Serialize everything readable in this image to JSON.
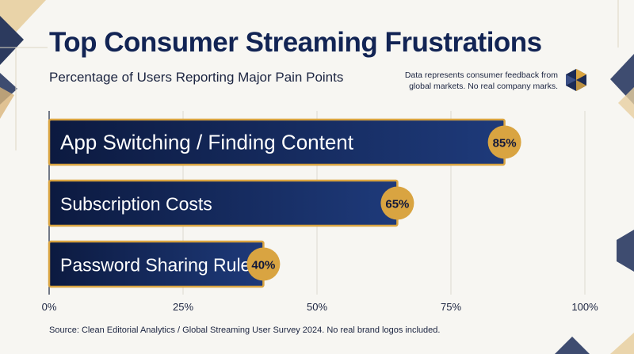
{
  "header": {
    "title": "Top Consumer Streaming Frustrations",
    "subtitle": "Percentage of Users Reporting Major Pain Points",
    "note_line1": "Data represents consumer feedback from",
    "note_line2": "global markets. No real company marks."
  },
  "footer": {
    "source": "Source: Clean Editorial Analytics / Global Streaming User Survey 2024. No real brand logos included."
  },
  "colors": {
    "bar_start": "#0c1a40",
    "bar_end": "#1e3a7a",
    "accent_gold": "#d9a441",
    "text_dark": "#122454",
    "background": "#f7f6f2"
  },
  "icons": [
    "hexagon-logo-icon"
  ],
  "chart_data": {
    "type": "bar",
    "orientation": "horizontal",
    "categories": [
      "App Switching / Finding Content",
      "Subscription Costs",
      "Password Sharing Rules"
    ],
    "values": [
      85,
      65,
      40
    ],
    "value_labels": [
      "85%",
      "65%",
      "40%"
    ],
    "xlim": [
      0,
      100
    ],
    "x_ticks": [
      "0%",
      "25%",
      "50%",
      "75%",
      "100%"
    ],
    "grid": true
  }
}
